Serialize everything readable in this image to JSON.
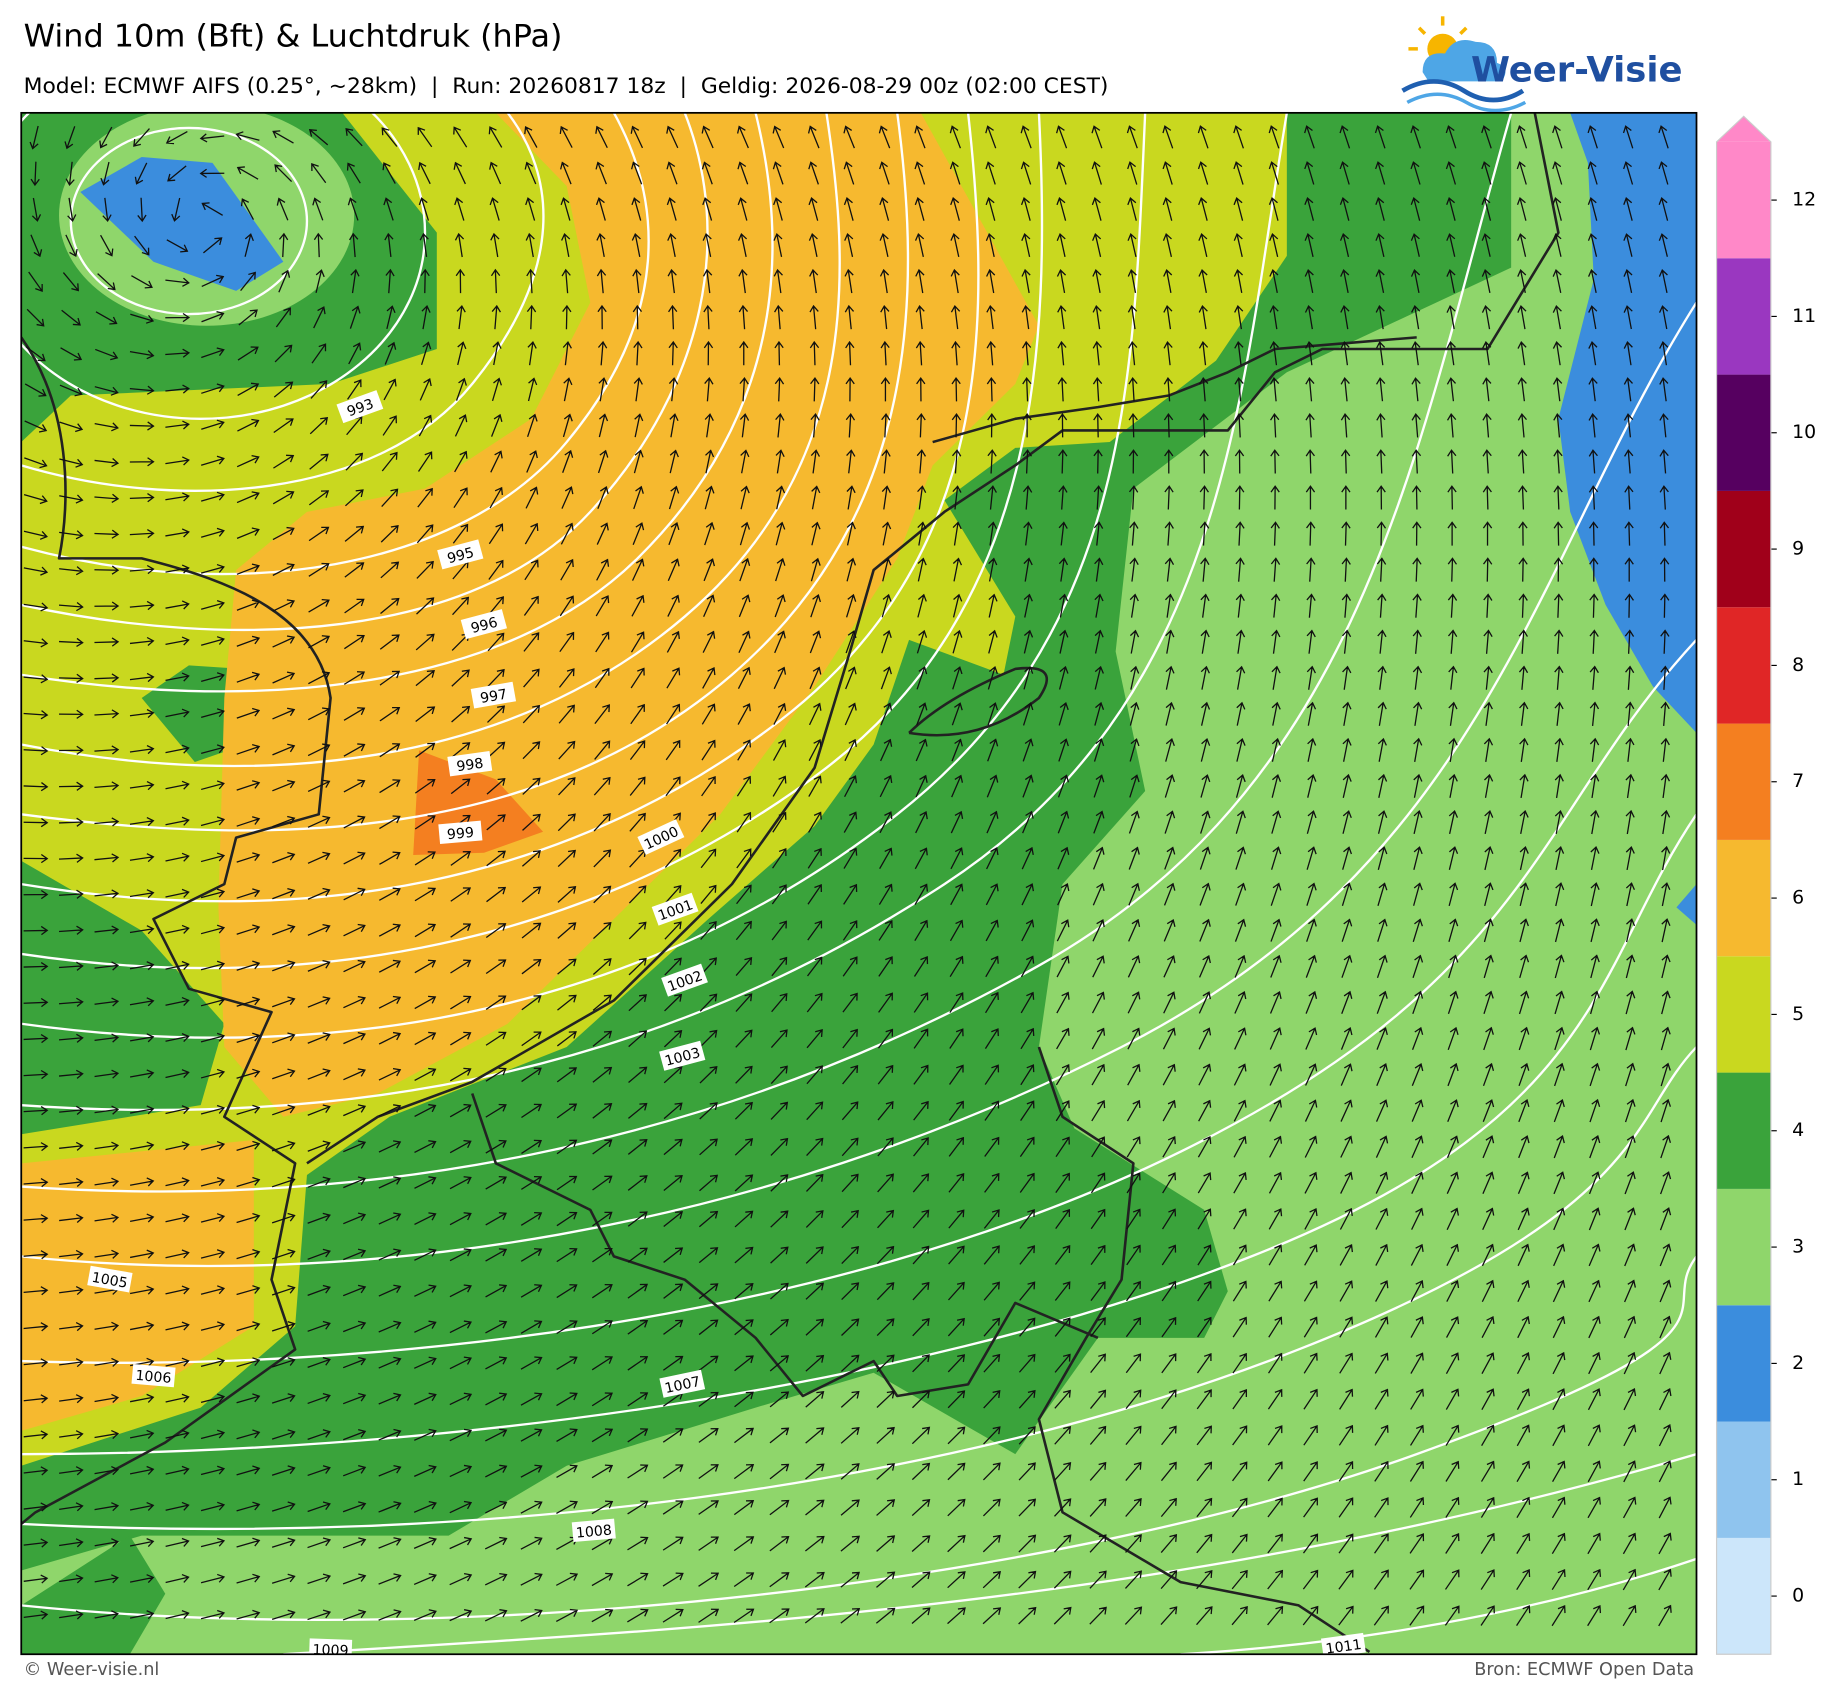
{
  "header": {
    "title": "Wind 10m (Bft) & Luchtdruk (hPa)",
    "subtitle": "Model: ECMWF AIFS (0.25°, ~28km)  |  Run: 20260817 18z  |  Geldig: 2026-08-29 00z (02:00 CEST)",
    "logo": "Weer-Visie"
  },
  "colorbar": {
    "ticks": [
      0,
      1,
      2,
      3,
      4,
      5,
      6,
      7,
      8,
      9,
      10,
      11,
      12
    ],
    "colors": [
      "#cce6fa",
      "#8fc4ee",
      "#3b8ddd",
      "#8fd66b",
      "#3aa33b",
      "#c9d81f",
      "#f6b92f",
      "#f47f20",
      "#e02626",
      "#a0001a",
      "#560060",
      "#9a37c0",
      "#ff88c8"
    ]
  },
  "isobar_labels": [
    993,
    995,
    996,
    997,
    998,
    999,
    1000,
    1001,
    1002,
    1003,
    1005,
    1006,
    1007,
    1008,
    1009,
    1011
  ],
  "footer": {
    "left": "© Weer-visie.nl",
    "right": "Bron: ECMWF Open Data"
  }
}
